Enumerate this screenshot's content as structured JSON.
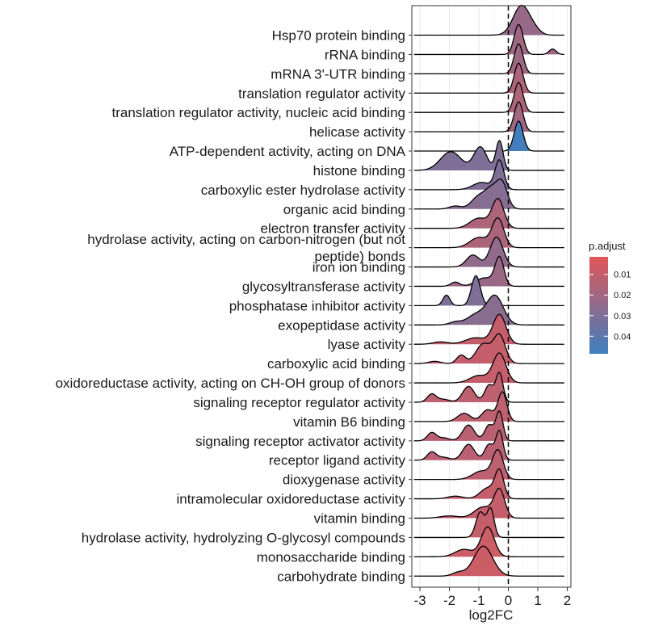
{
  "chart_data": {
    "type": "ridgeline",
    "xlabel": "log2FC",
    "xlim": [
      -3.2,
      1.9
    ],
    "x_ticks": [
      -3,
      -2,
      -1,
      0,
      1,
      2
    ],
    "x_tick_labels": [
      "-3",
      "-2",
      "-1",
      "0",
      "1",
      "2"
    ],
    "reference_line_x": 0,
    "grid": true,
    "legend": {
      "title": "p.adjust",
      "position": "right",
      "range": [
        0.0015,
        0.0485
      ],
      "ticks": [
        0.01,
        0.02,
        0.03,
        0.04
      ],
      "tick_labels": [
        "0.01",
        "0.02",
        "0.03",
        "0.04"
      ],
      "low_color": "#e15759",
      "high_color": "#3f7fbf"
    },
    "series": [
      {
        "name": "Hsp70 protein binding",
        "p_adjust": 0.023,
        "peaks": [
          [
            0.45,
            0.28,
            1.0
          ],
          [
            0.9,
            0.2,
            0.12
          ]
        ]
      },
      {
        "name": "rRNA binding",
        "p_adjust": 0.021,
        "peaks": [
          [
            0.35,
            0.15,
            1.0
          ],
          [
            1.5,
            0.12,
            0.18
          ]
        ]
      },
      {
        "name": "mRNA 3'-UTR binding",
        "p_adjust": 0.021,
        "peaks": [
          [
            0.35,
            0.15,
            1.0
          ]
        ]
      },
      {
        "name": "translation regulator activity",
        "p_adjust": 0.017,
        "peaks": [
          [
            0.35,
            0.15,
            1.0
          ]
        ]
      },
      {
        "name": "translation regulator activity, nucleic acid binding",
        "p_adjust": 0.017,
        "peaks": [
          [
            0.35,
            0.15,
            1.0
          ]
        ]
      },
      {
        "name": "helicase activity",
        "p_adjust": 0.02,
        "peaks": [
          [
            0.35,
            0.15,
            1.0
          ]
        ]
      },
      {
        "name": "ATP-dependent activity, acting on DNA",
        "p_adjust": 0.047,
        "peaks": [
          [
            0.35,
            0.15,
            1.0
          ]
        ]
      },
      {
        "name": "histone binding",
        "p_adjust": 0.03,
        "peaks": [
          [
            -0.3,
            0.12,
            0.95
          ],
          [
            -0.95,
            0.22,
            0.75
          ],
          [
            -1.95,
            0.35,
            0.6
          ]
        ]
      },
      {
        "name": "carboxylic ester hydrolase activity",
        "p_adjust": 0.03,
        "peaks": [
          [
            -0.3,
            0.15,
            1.0
          ],
          [
            -0.9,
            0.3,
            0.25
          ]
        ]
      },
      {
        "name": "organic acid binding",
        "p_adjust": 0.028,
        "peaks": [
          [
            -0.2,
            0.18,
            0.95
          ],
          [
            -0.55,
            0.22,
            0.75
          ],
          [
            -1.0,
            0.25,
            0.5
          ],
          [
            -1.8,
            0.2,
            0.12
          ]
        ]
      },
      {
        "name": "electron transfer activity",
        "p_adjust": 0.017,
        "peaks": [
          [
            -0.35,
            0.2,
            1.0
          ],
          [
            -1.0,
            0.3,
            0.35
          ]
        ]
      },
      {
        "name": "hydrolase activity, acting on carbon-nitrogen (but not peptide) bonds",
        "p_adjust": 0.017,
        "peaks": [
          [
            -0.35,
            0.2,
            1.0
          ],
          [
            -1.0,
            0.3,
            0.35
          ]
        ]
      },
      {
        "name": "iron ion binding",
        "p_adjust": 0.025,
        "peaks": [
          [
            -0.4,
            0.22,
            1.0
          ],
          [
            -1.2,
            0.22,
            0.4
          ]
        ]
      },
      {
        "name": "glycosyltransferase activity",
        "p_adjust": 0.022,
        "peaks": [
          [
            -0.3,
            0.15,
            1.0
          ],
          [
            -0.8,
            0.3,
            0.3
          ],
          [
            -1.8,
            0.15,
            0.15
          ]
        ]
      },
      {
        "name": "phosphatase inhibitor activity",
        "p_adjust": 0.03,
        "peaks": [
          [
            -1.1,
            0.15,
            1.0
          ],
          [
            -2.1,
            0.12,
            0.35
          ]
        ]
      },
      {
        "name": "exopeptidase activity",
        "p_adjust": 0.027,
        "peaks": [
          [
            -0.45,
            0.28,
            1.0
          ],
          [
            -1.1,
            0.3,
            0.35
          ],
          [
            -1.8,
            0.2,
            0.1
          ]
        ]
      },
      {
        "name": "lyase activity",
        "p_adjust": 0.01,
        "peaks": [
          [
            -0.3,
            0.22,
            1.0
          ],
          [
            -1.1,
            0.35,
            0.22
          ],
          [
            -2.3,
            0.25,
            0.08
          ]
        ]
      },
      {
        "name": "carboxylic acid binding",
        "p_adjust": 0.01,
        "peaks": [
          [
            -0.3,
            0.2,
            1.0
          ],
          [
            -0.85,
            0.25,
            0.7
          ],
          [
            -1.6,
            0.15,
            0.3
          ],
          [
            -2.5,
            0.2,
            0.08
          ]
        ]
      },
      {
        "name": "oxidoreductase activity, acting on CH-OH group of donors",
        "p_adjust": 0.01,
        "peaks": [
          [
            -0.3,
            0.22,
            1.0
          ],
          [
            -1.0,
            0.3,
            0.25
          ]
        ]
      },
      {
        "name": "signaling receptor regulator activity",
        "p_adjust": 0.012,
        "peaks": [
          [
            -0.3,
            0.12,
            1.0
          ],
          [
            -0.65,
            0.15,
            0.6
          ],
          [
            -1.35,
            0.2,
            0.55
          ],
          [
            -2.6,
            0.15,
            0.28
          ],
          [
            -2.2,
            0.2,
            0.1
          ]
        ]
      },
      {
        "name": "vitamin B6 binding",
        "p_adjust": 0.012,
        "peaks": [
          [
            -0.2,
            0.15,
            1.0
          ],
          [
            -0.7,
            0.2,
            0.4
          ],
          [
            -1.5,
            0.22,
            0.28
          ]
        ]
      },
      {
        "name": "signaling receptor activator activity",
        "p_adjust": 0.013,
        "peaks": [
          [
            -0.3,
            0.12,
            1.0
          ],
          [
            -0.65,
            0.15,
            0.55
          ],
          [
            -1.35,
            0.2,
            0.55
          ],
          [
            -2.6,
            0.15,
            0.28
          ],
          [
            -2.2,
            0.2,
            0.1
          ]
        ]
      },
      {
        "name": "receptor ligand activity",
        "p_adjust": 0.013,
        "peaks": [
          [
            -0.3,
            0.12,
            1.0
          ],
          [
            -0.65,
            0.15,
            0.55
          ],
          [
            -1.35,
            0.2,
            0.55
          ],
          [
            -2.6,
            0.15,
            0.28
          ],
          [
            -2.2,
            0.2,
            0.1
          ]
        ]
      },
      {
        "name": "dioxygenase activity",
        "p_adjust": 0.012,
        "peaks": [
          [
            -0.35,
            0.18,
            1.0
          ],
          [
            -0.9,
            0.3,
            0.3
          ]
        ]
      },
      {
        "name": "intramolecular oxidoreductase activity",
        "p_adjust": 0.01,
        "peaks": [
          [
            -0.3,
            0.15,
            1.0
          ],
          [
            -0.7,
            0.25,
            0.4
          ],
          [
            -1.8,
            0.25,
            0.1
          ]
        ]
      },
      {
        "name": "vitamin binding",
        "p_adjust": 0.01,
        "peaks": [
          [
            -0.3,
            0.18,
            1.0
          ],
          [
            -0.85,
            0.3,
            0.4
          ],
          [
            -2.0,
            0.3,
            0.08
          ]
        ]
      },
      {
        "name": "hydrolase activity, hydrolyzing O-glycosyl compounds",
        "p_adjust": 0.01,
        "peaks": [
          [
            -0.6,
            0.12,
            1.0
          ],
          [
            -0.95,
            0.15,
            0.9
          ]
        ]
      },
      {
        "name": "monosaccharide binding",
        "p_adjust": 0.008,
        "peaks": [
          [
            -0.7,
            0.22,
            1.0
          ],
          [
            -1.5,
            0.3,
            0.25
          ]
        ]
      },
      {
        "name": "carbohydrate binding",
        "p_adjust": 0.008,
        "peaks": [
          [
            -0.85,
            0.32,
            1.0
          ],
          [
            -1.7,
            0.2,
            0.12
          ]
        ]
      }
    ]
  }
}
